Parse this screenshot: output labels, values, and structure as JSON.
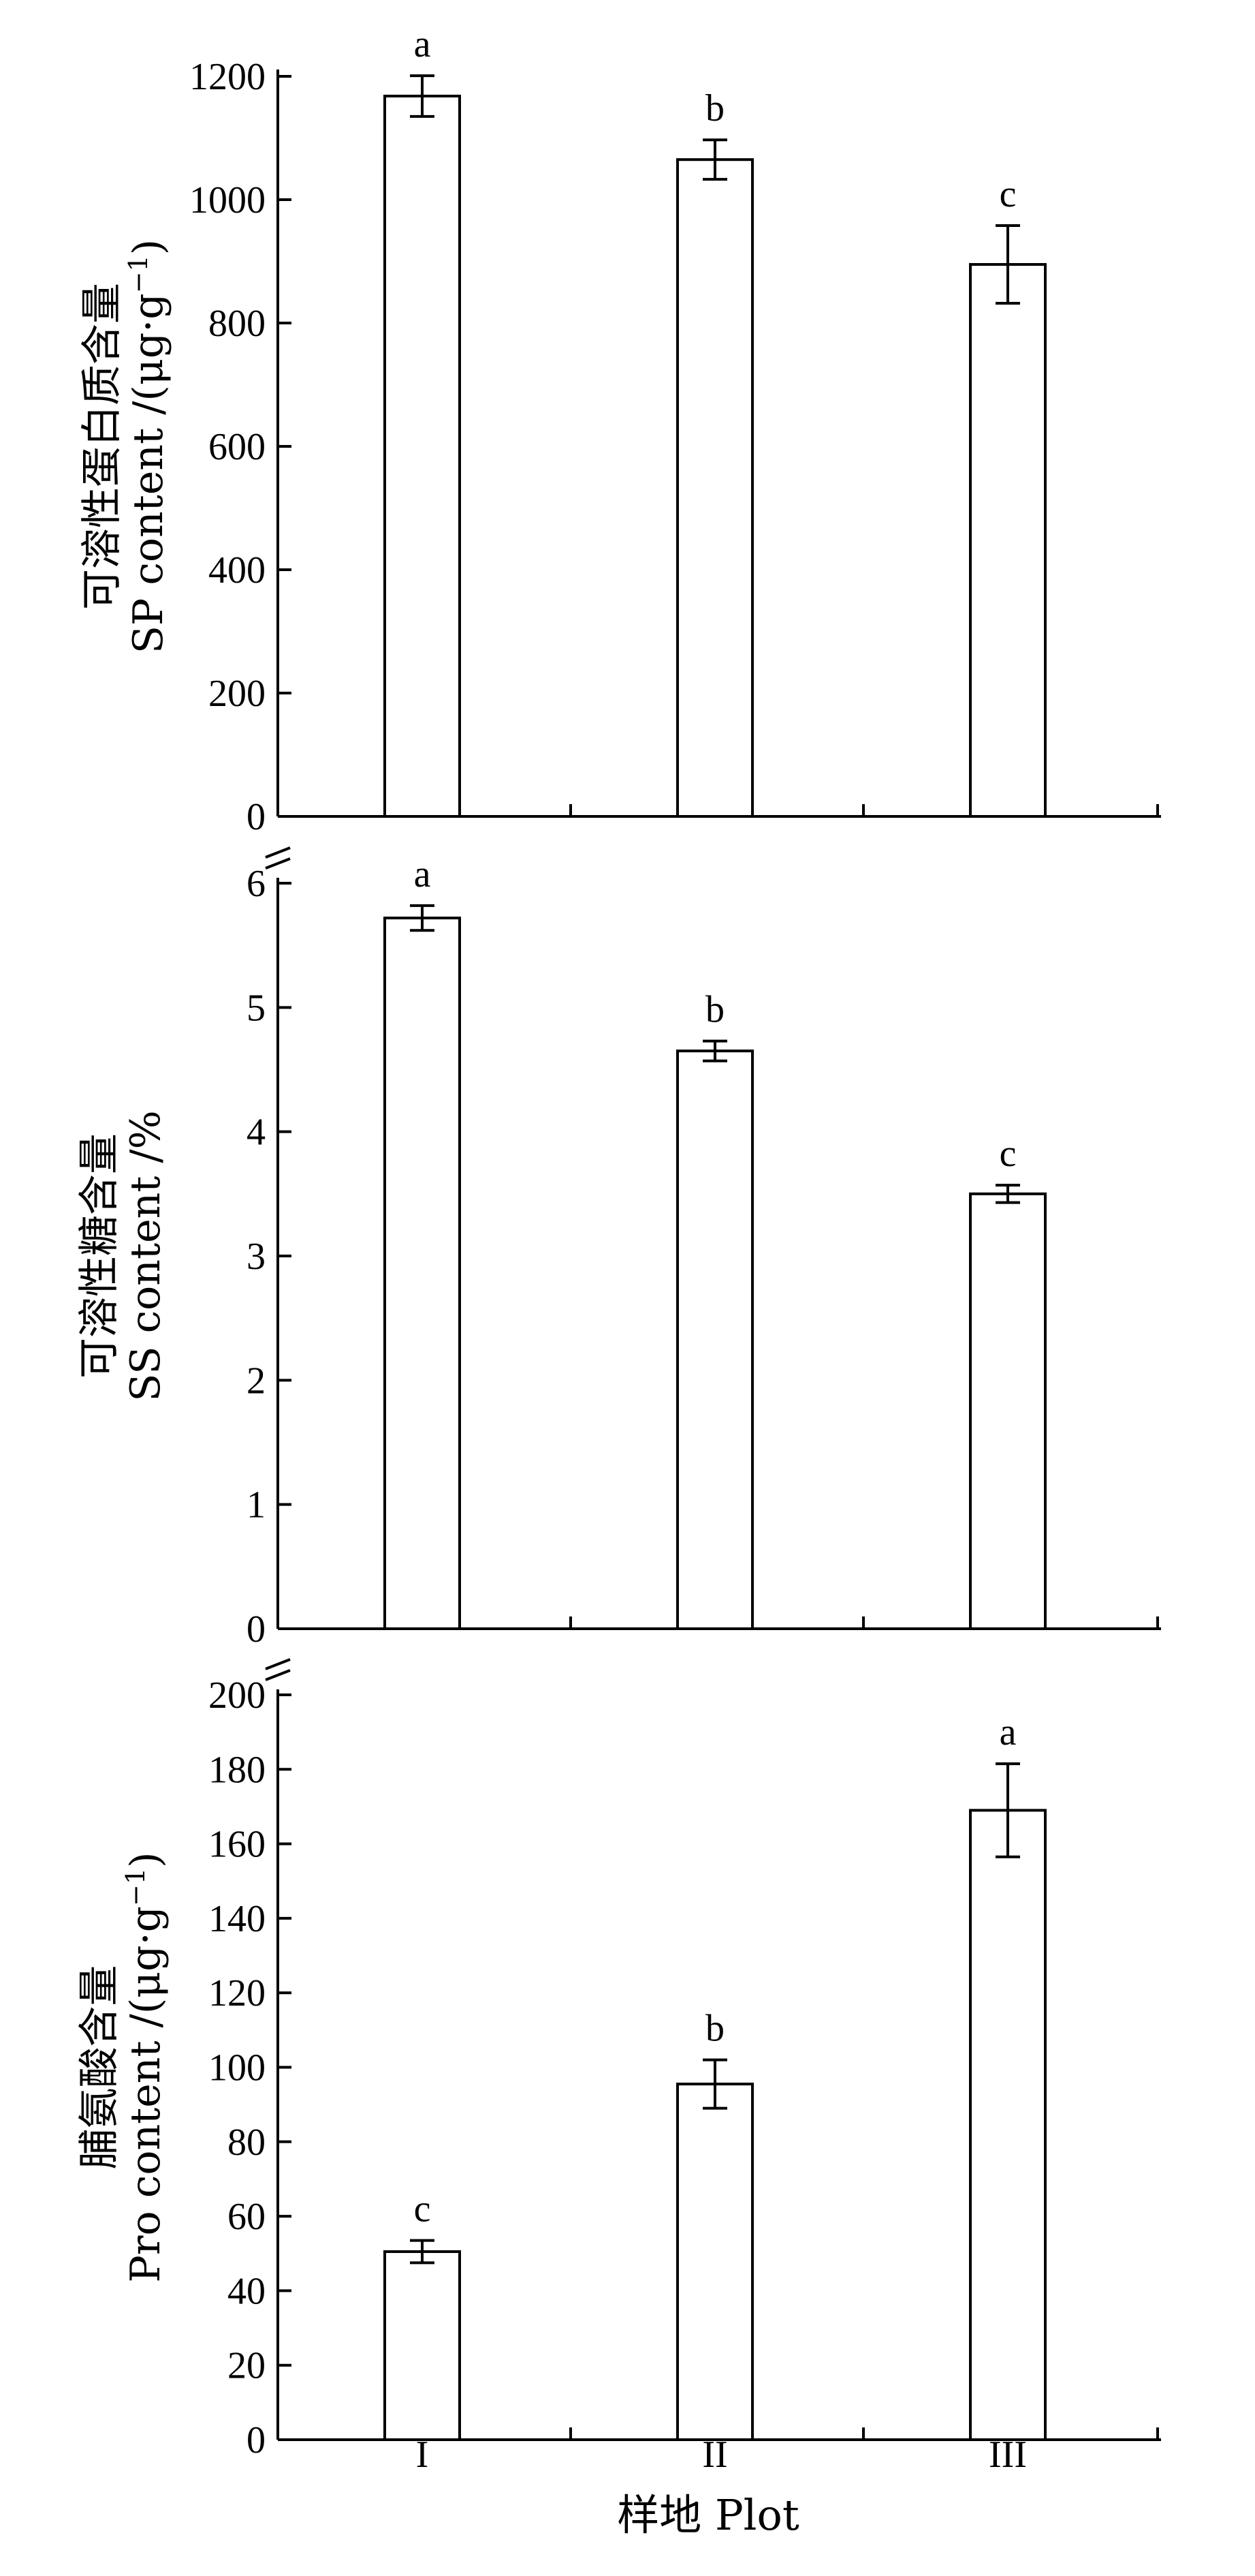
{
  "chart_data": [
    {
      "type": "bar",
      "categories": [
        "I",
        "II",
        "III"
      ],
      "values": [
        1168,
        1065,
        895
      ],
      "errors": [
        33,
        32,
        63
      ],
      "significance": [
        "a",
        "b",
        "c"
      ],
      "ylabel_cn": "可溶性蛋白质含量",
      "ylabel_en": "SP content /(μg·g",
      "ylabel_en_sup": "−1",
      "ylabel_en_close": ")",
      "ylim": [
        0,
        1200
      ],
      "yticks": [
        "0",
        "200",
        "400",
        "600",
        "800",
        "1000",
        "1200"
      ]
    },
    {
      "type": "bar",
      "categories": [
        "I",
        "II",
        "III"
      ],
      "values": [
        5.72,
        4.65,
        3.5
      ],
      "errors": [
        0.1,
        0.08,
        0.07
      ],
      "significance": [
        "a",
        "b",
        "c"
      ],
      "ylabel_cn": "可溶性糖含量",
      "ylabel_en": "SS content /%",
      "ylim": [
        0,
        6
      ],
      "yticks": [
        "0",
        "1",
        "2",
        "3",
        "4",
        "5",
        "6"
      ]
    },
    {
      "type": "bar",
      "categories": [
        "I",
        "II",
        "III"
      ],
      "values": [
        50.5,
        95.5,
        169
      ],
      "errors": [
        3,
        6.5,
        12.5
      ],
      "significance": [
        "c",
        "b",
        "a"
      ],
      "ylabel_cn": "脯氨酸含量",
      "ylabel_en": "Pro content /(μg·g",
      "ylabel_en_sup": "−1",
      "ylabel_en_close": ")",
      "ylim": [
        0,
        200
      ],
      "yticks": [
        "0",
        "20",
        "40",
        "60",
        "80",
        "100",
        "120",
        "140",
        "160",
        "180",
        "200"
      ]
    }
  ],
  "xaxis": {
    "tick_labels": [
      "I",
      "II",
      "III"
    ],
    "label": "样地 Plot"
  }
}
